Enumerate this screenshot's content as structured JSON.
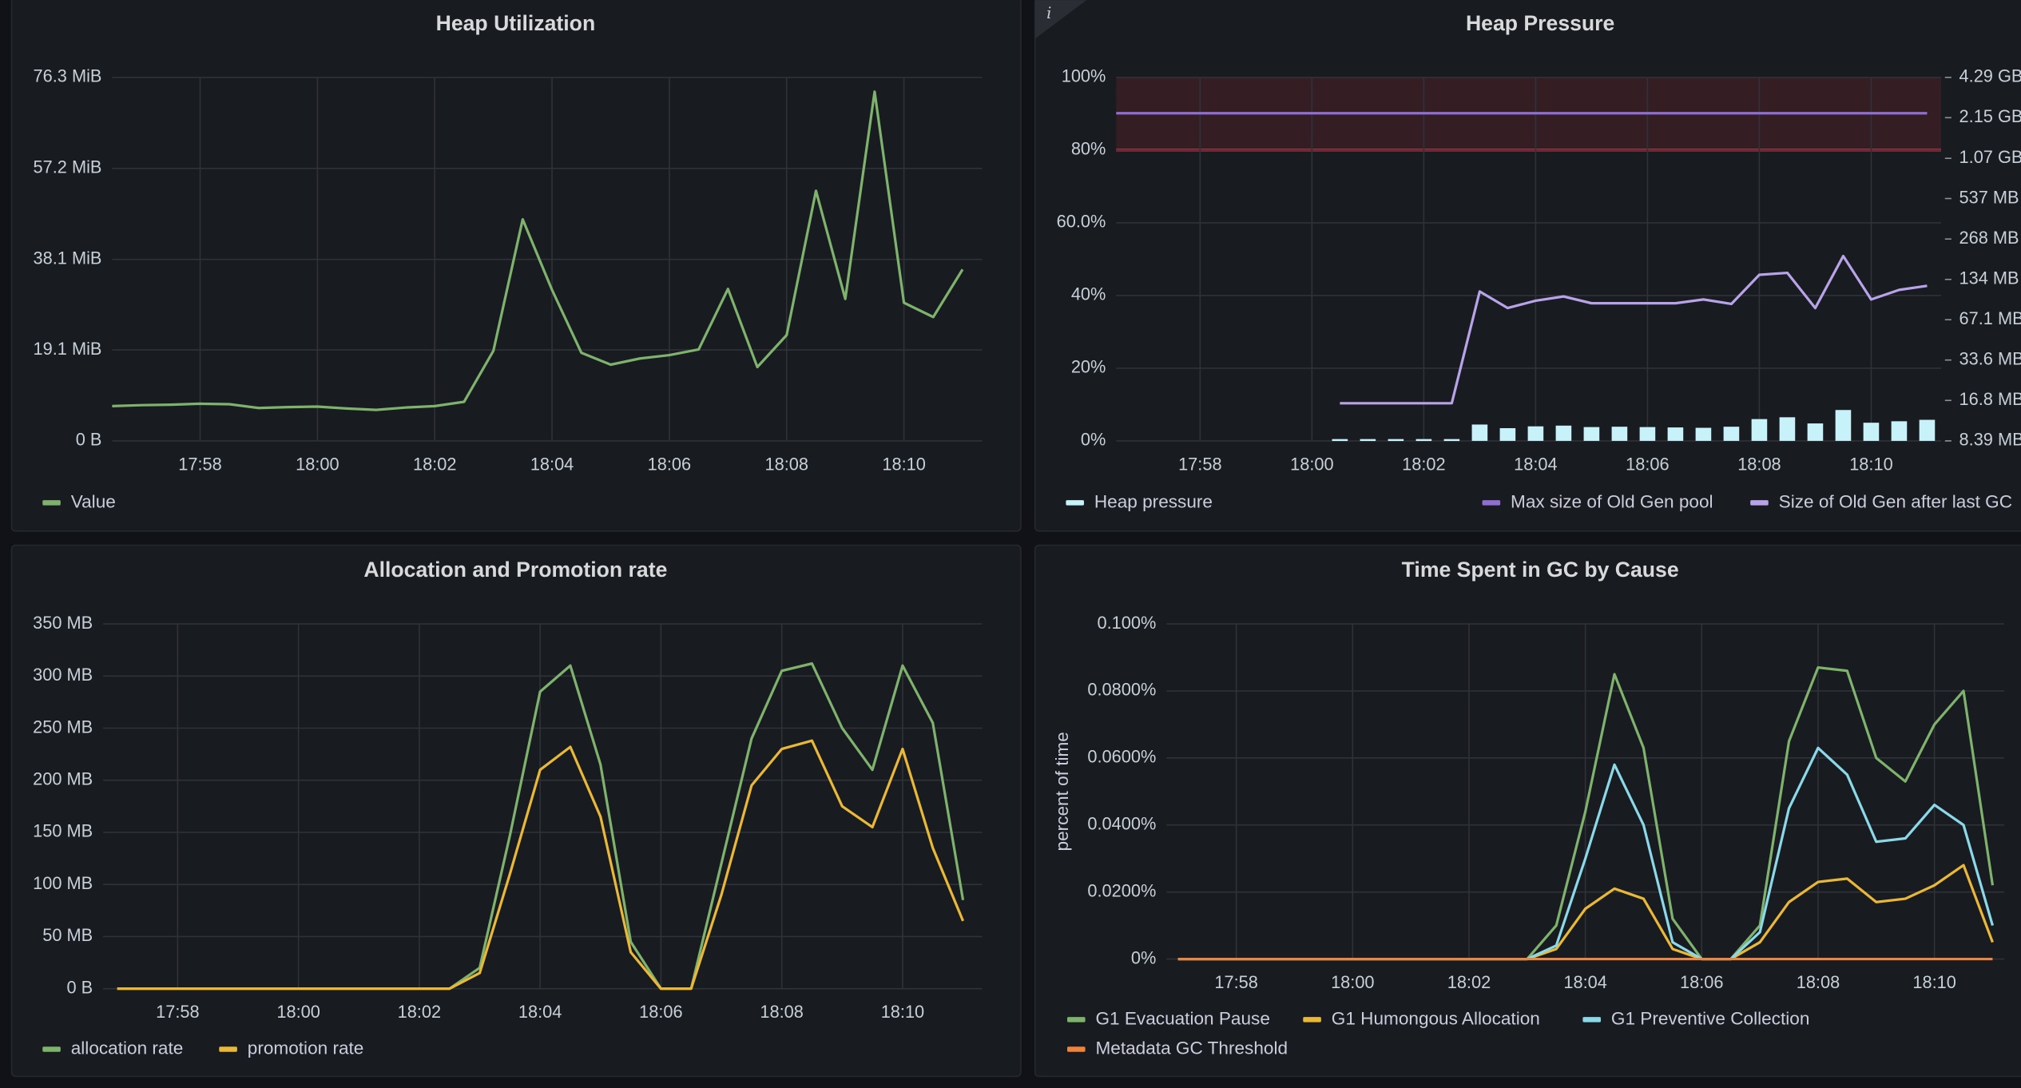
{
  "chart_data": [
    {
      "type": "line",
      "title": "Heap Utilization",
      "x": [
        "17:56:30",
        "17:57:00",
        "17:57:30",
        "17:58:00",
        "17:58:30",
        "17:59:00",
        "17:59:30",
        "18:00:00",
        "18:00:30",
        "18:01:00",
        "18:01:30",
        "18:02:00",
        "18:02:30",
        "18:03:00",
        "18:03:30",
        "18:04:00",
        "18:04:30",
        "18:05:00",
        "18:05:30",
        "18:06:00",
        "18:06:30",
        "18:07:00",
        "18:07:30",
        "18:08:00",
        "18:08:30",
        "18:09:00",
        "18:09:30",
        "18:10:00",
        "18:10:30",
        "18:11:00"
      ],
      "xlim": [
        "17:56:30",
        "18:11:20"
      ],
      "xticks": [
        "17:58",
        "18:00",
        "18:02",
        "18:04",
        "18:06",
        "18:08",
        "18:10"
      ],
      "ylim": [
        0,
        76.3
      ],
      "yticks": [
        {
          "value": 0,
          "label": "0 B"
        },
        {
          "value": 19.1,
          "label": "19.1 MiB"
        },
        {
          "value": 38.1,
          "label": "38.1 MiB"
        },
        {
          "value": 57.2,
          "label": "57.2 MiB"
        },
        {
          "value": 76.3,
          "label": "76.3 MiB"
        }
      ],
      "grid": true,
      "legend": "bottom",
      "series": [
        {
          "name": "Value",
          "color": "#7eb26d",
          "values": [
            7.3,
            7.5,
            7.6,
            7.8,
            7.7,
            6.9,
            7.1,
            7.2,
            6.8,
            6.5,
            7.0,
            7.3,
            8.2,
            18.9,
            46.5,
            31.7,
            18.5,
            16,
            17.3,
            18,
            19.2,
            31.9,
            15.5,
            22.2,
            52.5,
            29.8,
            73.3,
            29,
            26,
            36
          ]
        }
      ]
    },
    {
      "type": "line",
      "title": "Heap Pressure",
      "x": [
        "17:56:30",
        "17:57:00",
        "17:57:30",
        "17:58:00",
        "17:58:30",
        "17:59:00",
        "17:59:30",
        "18:00:00",
        "18:00:30",
        "18:01:00",
        "18:01:30",
        "18:02:00",
        "18:02:30",
        "18:03:00",
        "18:03:30",
        "18:04:00",
        "18:04:30",
        "18:05:00",
        "18:05:30",
        "18:06:00",
        "18:06:30",
        "18:07:00",
        "18:07:30",
        "18:08:00",
        "18:08:30",
        "18:09:00",
        "18:09:30",
        "18:10:00",
        "18:10:30",
        "18:11:00"
      ],
      "xlim": [
        "17:56:30",
        "18:11:15"
      ],
      "xticks": [
        "17:58",
        "18:00",
        "18:02",
        "18:04",
        "18:06",
        "18:08",
        "18:10"
      ],
      "ylim": [
        0,
        100
      ],
      "yticks": [
        {
          "value": 0,
          "label": "0%"
        },
        {
          "value": 20,
          "label": "20%"
        },
        {
          "value": 40,
          "label": "40%"
        },
        {
          "value": 60,
          "label": "60.0%"
        },
        {
          "value": 80,
          "label": "80%"
        },
        {
          "value": 100,
          "label": "100%"
        }
      ],
      "y2lim": [
        8.39,
        4290
      ],
      "y2log": true,
      "y2ticks": [
        {
          "value": 8.39,
          "label": "8.39 MB"
        },
        {
          "value": 16.8,
          "label": "16.8 MB"
        },
        {
          "value": 33.6,
          "label": "33.6 MB"
        },
        {
          "value": 67.1,
          "label": "67.1 MB"
        },
        {
          "value": 134,
          "label": "134 MB"
        },
        {
          "value": 268,
          "label": "268 MB"
        },
        {
          "value": 537,
          "label": "537 MB"
        },
        {
          "value": 1070,
          "label": "1.07 GB"
        },
        {
          "value": 2150,
          "label": "2.15 GB"
        },
        {
          "value": 4290,
          "label": "4.29 GB"
        }
      ],
      "threshold": 80,
      "threshold_color": "#e02f44",
      "grid": true,
      "legend": "bottom",
      "series": [
        {
          "name": "Heap pressure",
          "color": "#c8f2fa",
          "type": "bar",
          "values": [
            null,
            null,
            null,
            null,
            null,
            null,
            null,
            null,
            0.5,
            0.5,
            0.5,
            0.5,
            0.5,
            4.5,
            3.5,
            4,
            4.2,
            3.8,
            3.9,
            3.8,
            3.7,
            3.6,
            3.9,
            6,
            6.5,
            4.8,
            8.5,
            5,
            5.4,
            5.8
          ]
        },
        {
          "name": "Max size of Old Gen pool",
          "color": "#8f6fd0",
          "axis": "y2",
          "values": [
            2320,
            2320,
            2320,
            2320,
            2320,
            2320,
            2320,
            2320,
            2320,
            2320,
            2320,
            2320,
            2320,
            2320,
            2320,
            2320,
            2320,
            2320,
            2320,
            2320,
            2320,
            2320,
            2320,
            2320,
            2320,
            2320,
            2320,
            2320,
            2320,
            2320
          ]
        },
        {
          "name": "Size of Old Gen after last GC",
          "color": "#b8a3e8",
          "axis": "y2",
          "values": [
            null,
            null,
            null,
            null,
            null,
            null,
            null,
            null,
            16,
            16,
            16,
            16,
            16,
            109,
            82,
            93,
            100,
            89,
            89,
            89,
            89,
            95,
            88,
            145,
            150,
            82,
            200,
            95,
            112,
            120
          ]
        }
      ]
    },
    {
      "type": "line",
      "title": "Allocation and Promotion rate",
      "x": [
        "17:57:00",
        "17:57:30",
        "17:58:00",
        "17:58:30",
        "17:59:00",
        "17:59:30",
        "18:00:00",
        "18:00:30",
        "18:01:00",
        "18:01:30",
        "18:02:00",
        "18:02:30",
        "18:03:00",
        "18:03:30",
        "18:04:00",
        "18:04:30",
        "18:05:00",
        "18:05:30",
        "18:06:00",
        "18:06:30",
        "18:07:00",
        "18:07:30",
        "18:08:00",
        "18:08:30",
        "18:09:00",
        "18:09:30",
        "18:10:00",
        "18:10:30",
        "18:11:00"
      ],
      "xlim": [
        "17:56:46",
        "18:11:19"
      ],
      "xticks": [
        "17:58",
        "18:00",
        "18:02",
        "18:04",
        "18:06",
        "18:08",
        "18:10"
      ],
      "ylim": [
        0,
        350
      ],
      "yticks": [
        {
          "value": 0,
          "label": "0 B"
        },
        {
          "value": 50,
          "label": "50 MB"
        },
        {
          "value": 100,
          "label": "100 MB"
        },
        {
          "value": 150,
          "label": "150 MB"
        },
        {
          "value": 200,
          "label": "200 MB"
        },
        {
          "value": 250,
          "label": "250 MB"
        },
        {
          "value": 300,
          "label": "300 MB"
        },
        {
          "value": 350,
          "label": "350 MB"
        }
      ],
      "grid": true,
      "legend": "bottom",
      "series": [
        {
          "name": "allocation rate",
          "color": "#7eb26d",
          "values": [
            0,
            0,
            0,
            0,
            0,
            0,
            0,
            0,
            0,
            0,
            0,
            0,
            20,
            147,
            285,
            310,
            215,
            45,
            0,
            0,
            120,
            240,
            305,
            312,
            250,
            210,
            310,
            255,
            85
          ]
        },
        {
          "name": "promotion rate",
          "color": "#eab839",
          "values": [
            0,
            0,
            0,
            0,
            0,
            0,
            0,
            0,
            0,
            0,
            0,
            0,
            15,
            110,
            210,
            232,
            165,
            35,
            0,
            0,
            90,
            195,
            230,
            238,
            175,
            155,
            230,
            135,
            65
          ]
        }
      ]
    },
    {
      "type": "line",
      "title": "Time Spent in GC by Cause",
      "y_label": "percent of time",
      "x": [
        "17:57:00",
        "17:57:30",
        "17:58:00",
        "17:58:30",
        "17:59:00",
        "17:59:30",
        "18:00:00",
        "18:00:30",
        "18:01:00",
        "18:01:30",
        "18:02:00",
        "18:02:30",
        "18:03:00",
        "18:03:30",
        "18:04:00",
        "18:04:30",
        "18:05:00",
        "18:05:30",
        "18:06:00",
        "18:06:30",
        "18:07:00",
        "18:07:30",
        "18:08:00",
        "18:08:30",
        "18:09:00",
        "18:09:30",
        "18:10:00",
        "18:10:30",
        "18:11:00"
      ],
      "xlim": [
        "17:56:48",
        "18:11:12"
      ],
      "xticks": [
        "17:58",
        "18:00",
        "18:02",
        "18:04",
        "18:06",
        "18:08",
        "18:10"
      ],
      "ylim": [
        0,
        0.1
      ],
      "yticks": [
        {
          "value": 0,
          "label": "0%"
        },
        {
          "value": 0.02,
          "label": "0.0200%"
        },
        {
          "value": 0.04,
          "label": "0.0400%"
        },
        {
          "value": 0.06,
          "label": "0.0600%"
        },
        {
          "value": 0.08,
          "label": "0.0800%"
        },
        {
          "value": 0.1,
          "label": "0.100%"
        }
      ],
      "grid": true,
      "legend": "bottom",
      "series": [
        {
          "name": "G1 Evacuation Pause",
          "color": "#7eb26d",
          "values": [
            0,
            0,
            0,
            0,
            0,
            0,
            0,
            0,
            0,
            0,
            0,
            0,
            0,
            0.01,
            0.044,
            0.085,
            0.063,
            0.012,
            0,
            0,
            0.01,
            0.065,
            0.087,
            0.086,
            0.06,
            0.053,
            0.07,
            0.08,
            0.022
          ]
        },
        {
          "name": "G1 Humongous Allocation",
          "color": "#eab839",
          "values": [
            0,
            0,
            0,
            0,
            0,
            0,
            0,
            0,
            0,
            0,
            0,
            0,
            0,
            0.003,
            0.015,
            0.021,
            0.018,
            0.003,
            0,
            0,
            0.005,
            0.017,
            0.023,
            0.024,
            0.017,
            0.018,
            0.022,
            0.028,
            0.005
          ]
        },
        {
          "name": "G1 Preventive Collection",
          "color": "#8ad8e8",
          "values": [
            0,
            0,
            0,
            0,
            0,
            0,
            0,
            0,
            0,
            0,
            0,
            0,
            0,
            0.004,
            0.03,
            0.058,
            0.04,
            0.005,
            0,
            0,
            0.008,
            0.045,
            0.063,
            0.055,
            0.035,
            0.036,
            0.046,
            0.04,
            0.01
          ]
        },
        {
          "name": "Metadata GC Threshold",
          "color": "#ef843c",
          "values": [
            0,
            0,
            0,
            0,
            0,
            0,
            0,
            0,
            0,
            0,
            0,
            0,
            0,
            0,
            0,
            0,
            0,
            0,
            0,
            0,
            0,
            0,
            0,
            0,
            0,
            0,
            0,
            0,
            0
          ]
        }
      ]
    }
  ]
}
